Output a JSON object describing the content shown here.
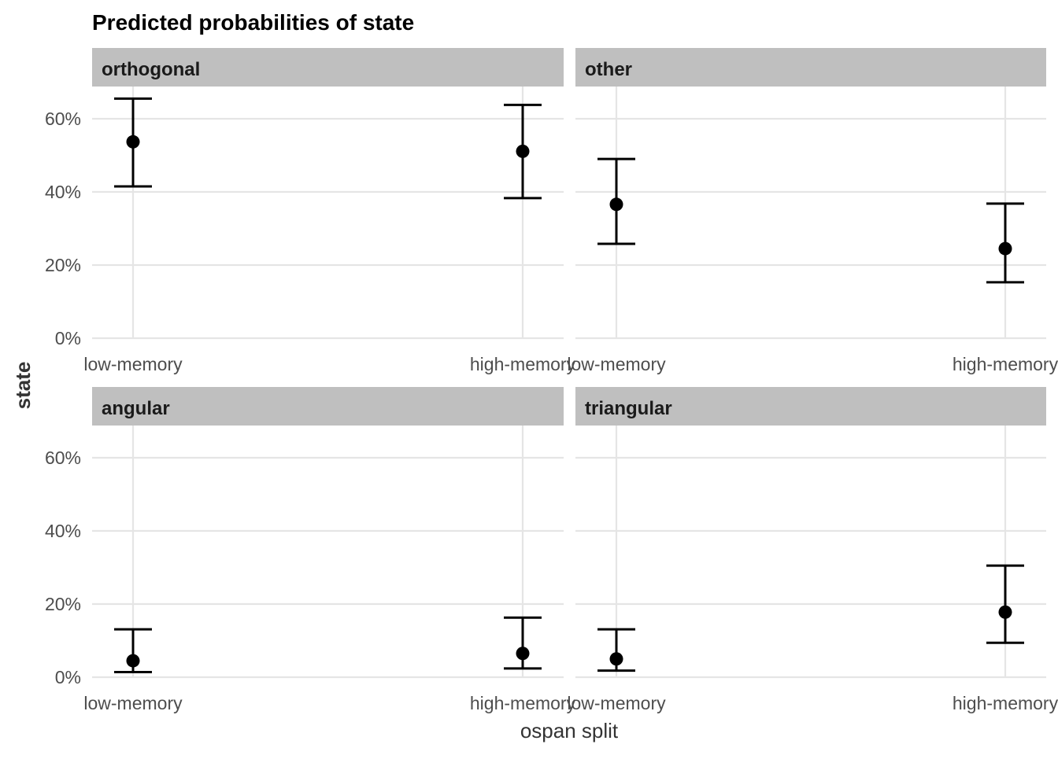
{
  "chart_data": {
    "type": "scatter",
    "title": "Predicted probabilities of state",
    "xlabel": "ospan split",
    "ylabel": "state",
    "categories": [
      "low-memory",
      "high-memory"
    ],
    "ylim": [
      0,
      0.7
    ],
    "yticks": [
      0,
      0.2,
      0.4,
      0.6
    ],
    "ytick_labels": [
      "0%",
      "20%",
      "40%",
      "60%"
    ],
    "grid": true,
    "facets": [
      {
        "label": "orthogonal",
        "points": [
          {
            "x": "low-memory",
            "y": 0.537,
            "lower": 0.415,
            "upper": 0.655
          },
          {
            "x": "high-memory",
            "y": 0.511,
            "lower": 0.383,
            "upper": 0.638
          }
        ]
      },
      {
        "label": "other",
        "points": [
          {
            "x": "low-memory",
            "y": 0.366,
            "lower": 0.258,
            "upper": 0.49
          },
          {
            "x": "high-memory",
            "y": 0.245,
            "lower": 0.153,
            "upper": 0.368
          }
        ]
      },
      {
        "label": "angular",
        "points": [
          {
            "x": "low-memory",
            "y": 0.045,
            "lower": 0.014,
            "upper": 0.131
          },
          {
            "x": "high-memory",
            "y": 0.065,
            "lower": 0.024,
            "upper": 0.163
          }
        ]
      },
      {
        "label": "triangular",
        "points": [
          {
            "x": "low-memory",
            "y": 0.05,
            "lower": 0.018,
            "upper": 0.131
          },
          {
            "x": "high-memory",
            "y": 0.178,
            "lower": 0.094,
            "upper": 0.305
          }
        ]
      }
    ]
  },
  "colors": {
    "strip_background": "#bfbfbf",
    "grid": "#e5e5e5",
    "marks": "#000000"
  }
}
